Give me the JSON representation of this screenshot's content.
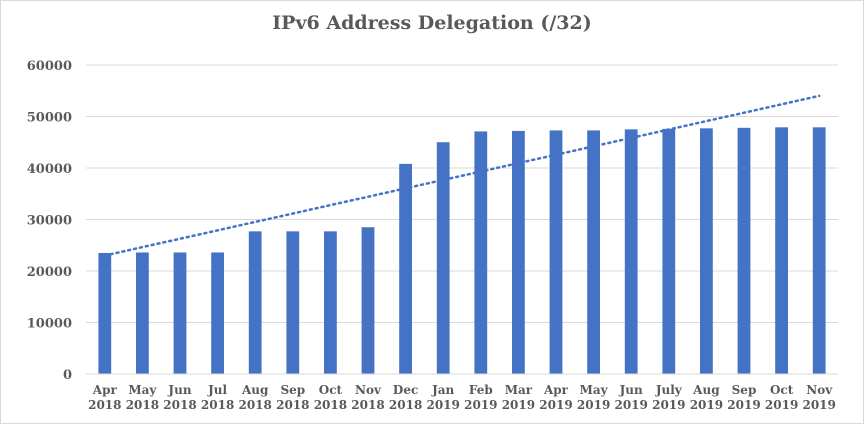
{
  "chart_data": {
    "type": "bar",
    "title": "IPv6 Address Delegation (/32)",
    "xlabel": "",
    "ylabel": "",
    "ylim": [
      0,
      60000
    ],
    "yticks": [
      "0",
      "10000",
      "20000",
      "30000",
      "40000",
      "50000",
      "60000"
    ],
    "categories": [
      "Apr 2018",
      "May 2018",
      "Jun 2018",
      "Jul 2018",
      "Aug 2018",
      "Sep 2018",
      "Oct 2018",
      "Nov 2018",
      "Dec 2018",
      "Jan 2019",
      "Feb 2019",
      "Mar 2019",
      "Apr 2019",
      "May 2019",
      "Jun 2019",
      "July 2019",
      "Aug 2019",
      "Sep 2019",
      "Oct 2019",
      "Nov 2019"
    ],
    "values": [
      23500,
      23600,
      23600,
      23600,
      27700,
      27700,
      27700,
      28500,
      40800,
      45000,
      47100,
      47200,
      47300,
      47300,
      47500,
      47600,
      47700,
      47800,
      47900,
      47900
    ],
    "trendline": {
      "type": "linear",
      "style": "dotted",
      "start": 23000,
      "end": 54000
    },
    "grid": true,
    "legend": "none",
    "colors": {
      "bar": "#4472C4",
      "trend": "#4472C4",
      "grid": "#d9d9d9",
      "text": "#595959"
    }
  }
}
